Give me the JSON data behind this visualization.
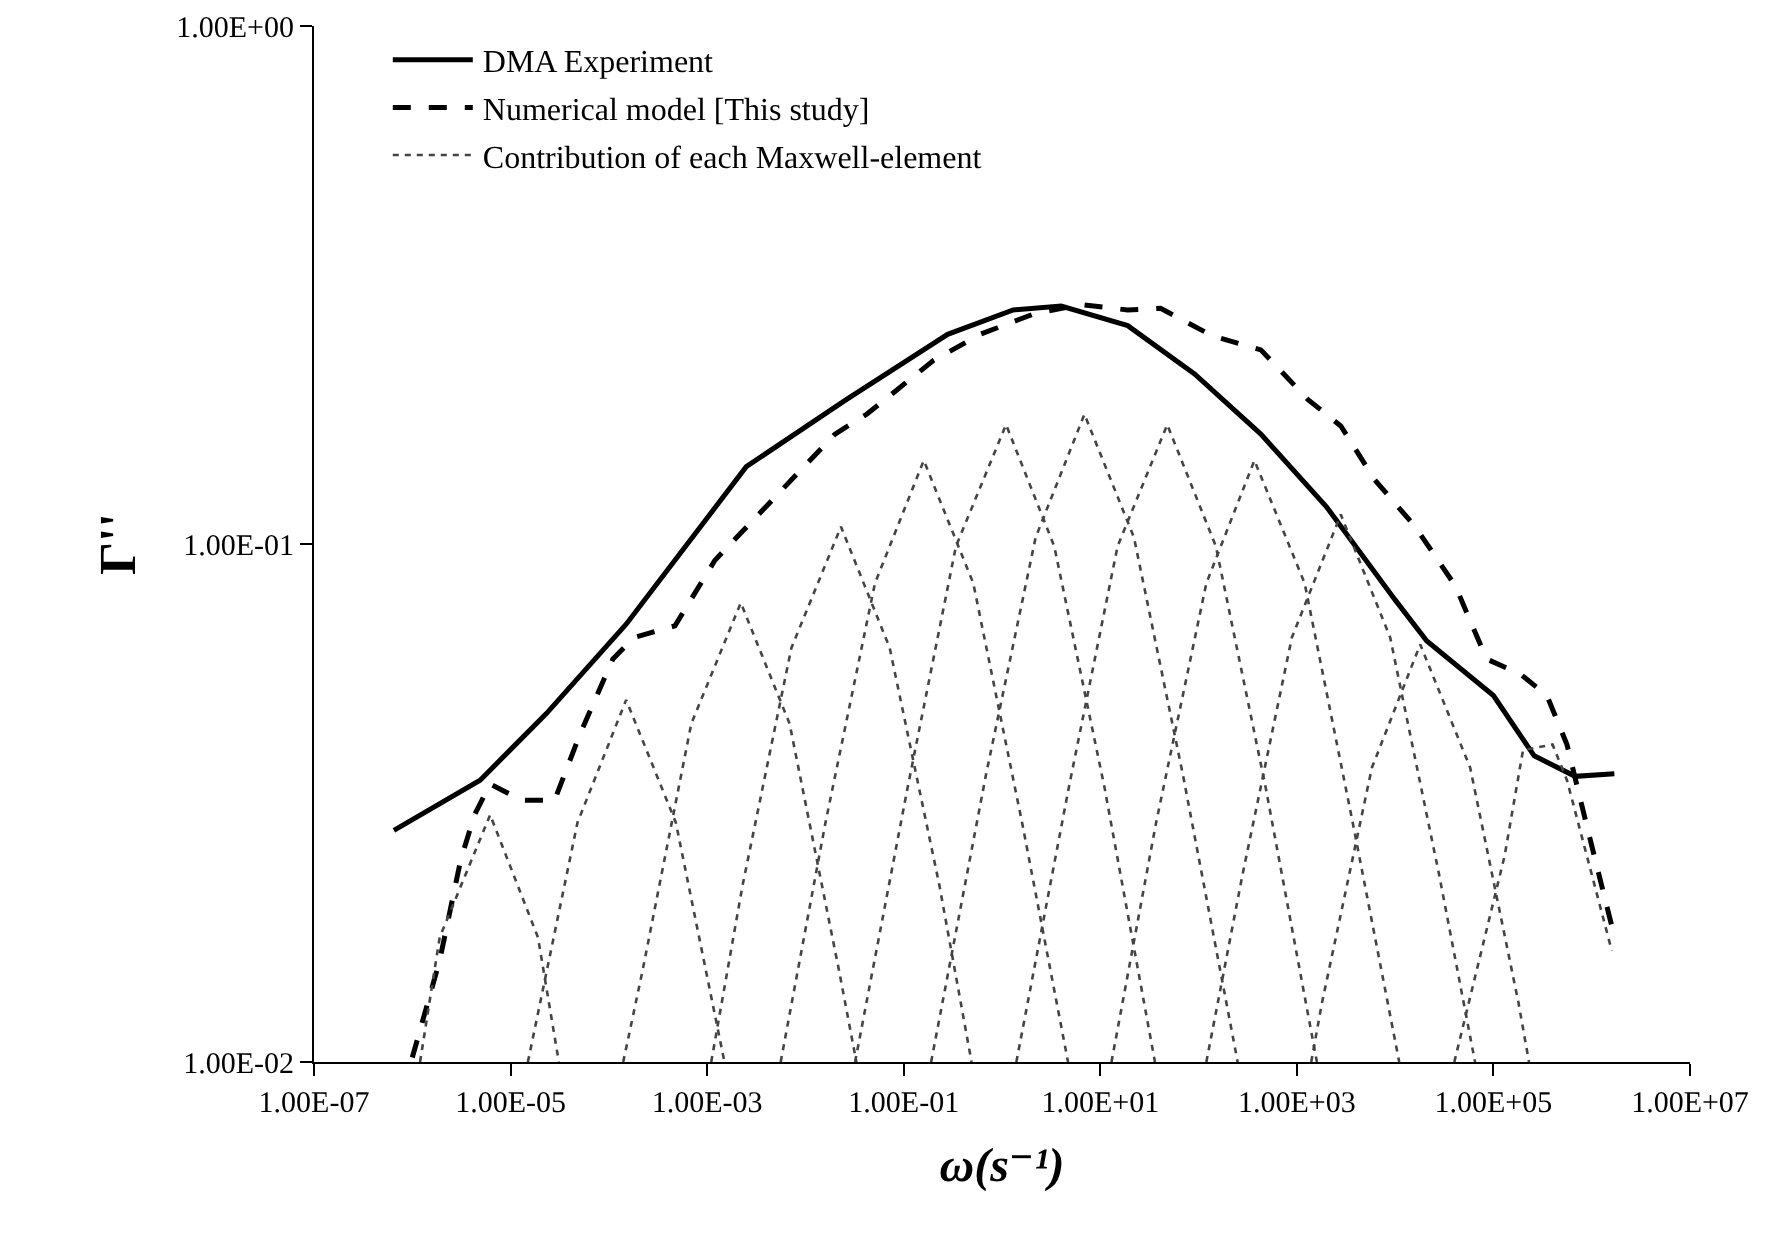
{
  "chart_data": {
    "type": "line",
    "xlabel": "ω(s⁻¹)",
    "ylabel": "Γ''",
    "log": "xy",
    "grid": false,
    "legend": "top left",
    "marker": "none",
    "xlim": [
      1e-07,
      10000000.0
    ],
    "ylim": [
      0.01,
      1
    ],
    "xticks": [
      {
        "value": 1e-07,
        "label": "1.00E-07"
      },
      {
        "value": 1e-05,
        "label": "1.00E-05"
      },
      {
        "value": 0.001,
        "label": "1.00E-03"
      },
      {
        "value": 0.1,
        "label": "1.00E-01"
      },
      {
        "value": 10,
        "label": "1.00E+01"
      },
      {
        "value": 1000,
        "label": "1.00E+03"
      },
      {
        "value": 100000,
        "label": "1.00E+05"
      },
      {
        "value": 10000000,
        "label": "1.00E+07"
      }
    ],
    "yticks": [
      {
        "value": 0.01,
        "label": "1.00E-02"
      },
      {
        "value": 0.1,
        "label": "1.00E-01"
      },
      {
        "value": 1,
        "label": "1.00E+00"
      }
    ],
    "series": [
      {
        "name": "DMA Experiment",
        "color": "#000000",
        "line_style": "solid",
        "x": [
          6.5e-07,
          4.9e-06,
          2.3e-05,
          0.00015,
          0.0025,
          0.026,
          0.28,
          1.3,
          4,
          19,
          91,
          430,
          2000,
          10000,
          21000,
          100000,
          260000,
          680000,
          1700000
        ],
        "values": [
          0.028,
          0.035,
          0.047,
          0.07,
          0.141,
          0.19,
          0.254,
          0.283,
          0.288,
          0.264,
          0.213,
          0.163,
          0.118,
          0.078,
          0.065,
          0.051,
          0.039,
          0.0356,
          0.036
        ]
      },
      {
        "name": "Numerical model [This study]",
        "color": "#000000",
        "line_style": "dashed",
        "x": [
          1e-06,
          1.9e-06,
          3.1e-06,
          4.3e-06,
          6.2e-06,
          1.3e-05,
          2.8e-05,
          5.1e-05,
          0.00011,
          0.00018,
          0.00047,
          0.0012,
          0.02,
          0.042,
          0.2,
          0.6,
          2.1,
          6.3,
          19,
          41,
          140,
          430,
          1300,
          2800,
          6200,
          16000,
          41000,
          85000,
          190000,
          350000,
          560000,
          890000,
          1600000
        ],
        "values": [
          0.0102,
          0.0157,
          0.0245,
          0.03,
          0.0344,
          0.032,
          0.032,
          0.043,
          0.06,
          0.066,
          0.0695,
          0.093,
          0.163,
          0.178,
          0.226,
          0.254,
          0.278,
          0.29,
          0.283,
          0.285,
          0.252,
          0.237,
          0.19,
          0.169,
          0.133,
          0.108,
          0.083,
          0.06,
          0.056,
          0.051,
          0.041,
          0.0286,
          0.0183
        ]
      },
      {
        "name": "Contribution of each Maxwell-element",
        "color": "#444444",
        "line_style": "dotted",
        "x": [
          1.2e-06,
          1.9e-06,
          6.2e-06,
          1.9e-05,
          3.1e-05
        ],
        "values": [
          0.01,
          0.0174,
          0.03,
          0.0174,
          0.01
        ]
      },
      {
        "color": "#444444",
        "line_style": "dotted",
        "x": [
          1.5e-05,
          4.8e-05,
          0.00015,
          0.00048,
          0.0015
        ],
        "values": [
          0.01,
          0.029,
          0.05,
          0.029,
          0.01
        ]
      },
      {
        "color": "#444444",
        "line_style": "dotted",
        "x": [
          0.00014,
          0.00022,
          0.00069,
          0.0022,
          0.0069,
          0.022,
          0.033
        ],
        "values": [
          0.01,
          0.015,
          0.045,
          0.077,
          0.045,
          0.015,
          0.01
        ]
      },
      {
        "color": "#444444",
        "line_style": "dotted",
        "x": [
          0.0011,
          0.0023,
          0.0072,
          0.023,
          0.072,
          0.23,
          0.49
        ],
        "values": [
          0.01,
          0.022,
          0.063,
          0.108,
          0.063,
          0.022,
          0.01
        ]
      },
      {
        "color": "#444444",
        "line_style": "dotted",
        "x": [
          0.0056,
          0.016,
          0.051,
          0.16,
          0.51,
          1.6,
          4.7
        ],
        "values": [
          0.01,
          0.029,
          0.084,
          0.145,
          0.084,
          0.029,
          0.01
        ]
      },
      {
        "color": "#444444",
        "line_style": "dotted",
        "x": [
          0.032,
          0.11,
          0.34,
          1.1,
          3.4,
          11,
          36
        ],
        "values": [
          0.01,
          0.034,
          0.099,
          0.17,
          0.099,
          0.034,
          0.01
        ]
      },
      {
        "color": "#444444",
        "line_style": "dotted",
        "x": [
          0.19,
          0.69,
          2.2,
          6.9,
          22,
          69,
          250
        ],
        "values": [
          0.01,
          0.036,
          0.103,
          0.178,
          0.103,
          0.036,
          0.01
        ]
      },
      {
        "color": "#444444",
        "line_style": "dotted",
        "x": [
          1.4,
          4.8,
          15,
          48,
          150,
          480,
          1600
        ],
        "values": [
          0.01,
          0.034,
          0.099,
          0.17,
          0.099,
          0.034,
          0.01
        ]
      },
      {
        "color": "#444444",
        "line_style": "dotted",
        "x": [
          13,
          37,
          120,
          370,
          1200,
          3700,
          11000
        ],
        "values": [
          0.01,
          0.029,
          0.084,
          0.145,
          0.084,
          0.029,
          0.01
        ]
      },
      {
        "color": "#444444",
        "line_style": "dotted",
        "x": [
          120,
          280,
          890,
          2800,
          8900,
          28000,
          65000
        ],
        "values": [
          0.01,
          0.023,
          0.066,
          0.114,
          0.066,
          0.023,
          0.01
        ]
      },
      {
        "color": "#444444",
        "line_style": "dotted",
        "x": [
          1400,
          1800,
          5800,
          18000,
          58000,
          180000,
          230000
        ],
        "values": [
          0.01,
          0.013,
          0.037,
          0.064,
          0.037,
          0.013,
          0.01
        ]
      },
      {
        "color": "#444444",
        "line_style": "dotted",
        "x": [
          40000,
          130000,
          200000,
          400000,
          560000,
          1600000
        ],
        "values": [
          0.01,
          0.025,
          0.04,
          0.041,
          0.035,
          0.0164
        ]
      }
    ]
  }
}
